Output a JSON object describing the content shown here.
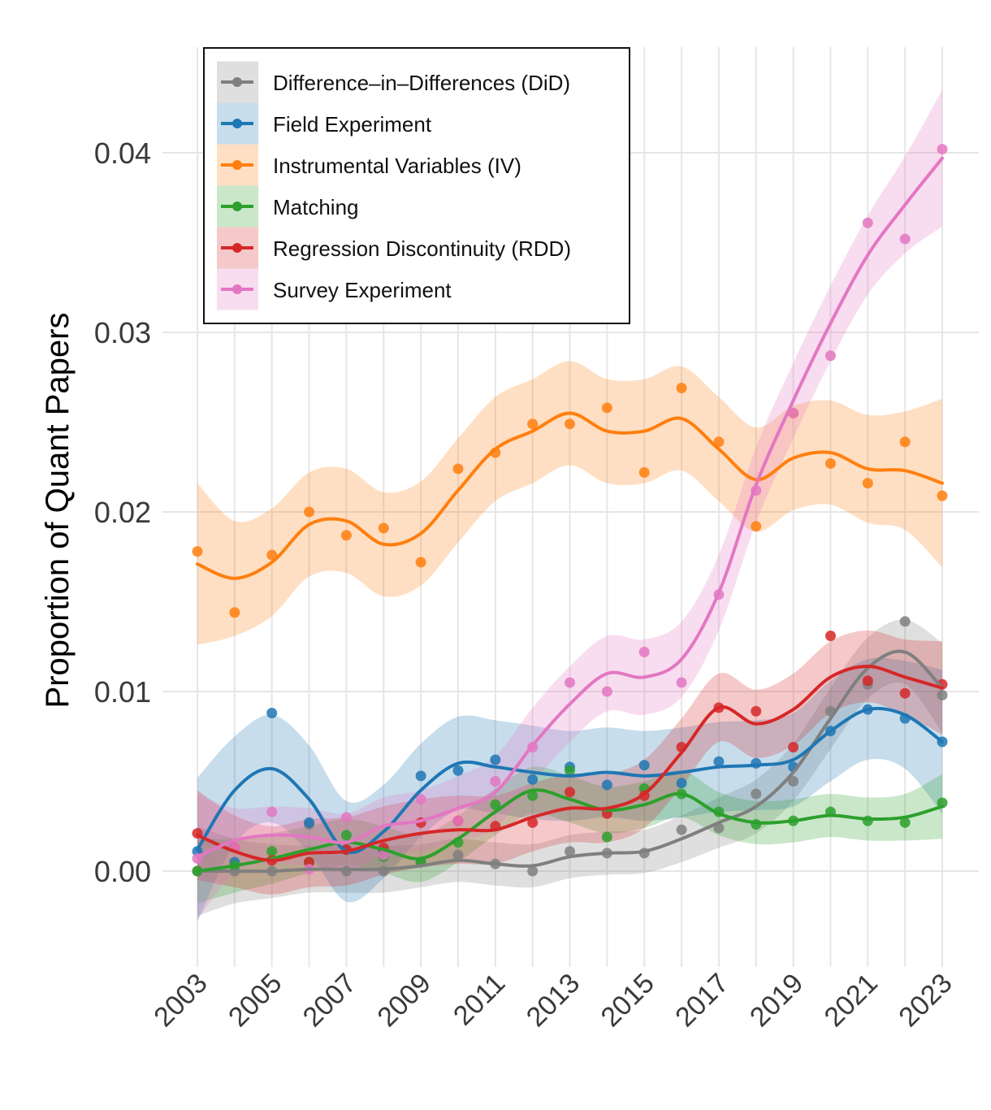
{
  "chart_data": {
    "type": "line",
    "title": "",
    "xlabel": "",
    "ylabel": "Proportion of Quant Papers",
    "xlim": [
      2003,
      2023
    ],
    "ylim": [
      -0.0055,
      0.046
    ],
    "x_ticks": [
      2003,
      2005,
      2007,
      2009,
      2011,
      2013,
      2015,
      2017,
      2019,
      2021,
      2023
    ],
    "x_tick_labels": [
      "2003",
      "2005",
      "2007",
      "2009",
      "2011",
      "2013",
      "2015",
      "2017",
      "2019",
      "2021",
      "2023"
    ],
    "y_ticks": [
      0.0,
      0.01,
      0.02,
      0.03,
      0.04
    ],
    "y_tick_labels": [
      "0.00",
      "0.01",
      "0.02",
      "0.03",
      "0.04"
    ],
    "grid": true,
    "legend_position": "top-left",
    "x": [
      2003,
      2004,
      2005,
      2006,
      2007,
      2008,
      2009,
      2010,
      2011,
      2012,
      2013,
      2014,
      2015,
      2016,
      2017,
      2018,
      2019,
      2020,
      2021,
      2022,
      2023
    ],
    "series": [
      {
        "name": "Difference–in–Differences (DiD)",
        "color": "#7f7f7f",
        "values": [
          0.0,
          0.0,
          0.0,
          0.0026,
          0.0,
          0.0,
          0.0005,
          0.0009,
          0.0004,
          0.0,
          0.0011,
          0.001,
          0.001,
          0.0023,
          0.0024,
          0.0043,
          0.005,
          0.0089,
          0.0104,
          0.0139,
          0.0098
        ],
        "smooth": [
          0.0,
          0.0,
          0.0,
          0.0001,
          0.0001,
          0.0001,
          0.0003,
          0.0006,
          0.0004,
          0.0003,
          0.0008,
          0.001,
          0.0011,
          0.0018,
          0.0027,
          0.0036,
          0.0055,
          0.0085,
          0.0113,
          0.0122,
          0.0102
        ],
        "band": [
          0.0025,
          0.0018,
          0.0015,
          0.0013,
          0.0013,
          0.0013,
          0.0012,
          0.0012,
          0.0012,
          0.0012,
          0.0012,
          0.0012,
          0.0012,
          0.0013,
          0.0014,
          0.0015,
          0.0016,
          0.0017,
          0.0017,
          0.0018,
          0.0025
        ]
      },
      {
        "name": "Field Experiment",
        "color": "#1f77b4",
        "values": [
          0.0011,
          0.0005,
          0.0088,
          0.0027,
          0.0012,
          0.0011,
          0.0053,
          0.0056,
          0.0062,
          0.0051,
          0.0058,
          0.0048,
          0.0059,
          0.0049,
          0.0061,
          0.006,
          0.0058,
          0.0078,
          0.009,
          0.0085,
          0.0072
        ],
        "smooth": [
          0.0012,
          0.0045,
          0.0057,
          0.004,
          0.0011,
          0.0022,
          0.0045,
          0.006,
          0.0058,
          0.0055,
          0.0053,
          0.0055,
          0.0053,
          0.0055,
          0.0058,
          0.0059,
          0.0062,
          0.0078,
          0.009,
          0.0087,
          0.0072
        ],
        "band": [
          0.004,
          0.003,
          0.003,
          0.003,
          0.0028,
          0.0026,
          0.0026,
          0.0026,
          0.0026,
          0.0026,
          0.0025,
          0.0025,
          0.0025,
          0.0025,
          0.0025,
          0.0025,
          0.0026,
          0.0028,
          0.0028,
          0.003,
          0.004
        ]
      },
      {
        "name": "Instrumental Variables (IV)",
        "color": "#ff7f0e",
        "values": [
          0.0178,
          0.0144,
          0.0176,
          0.02,
          0.0187,
          0.0191,
          0.0172,
          0.0224,
          0.0233,
          0.0249,
          0.0249,
          0.0258,
          0.0222,
          0.0269,
          0.0239,
          0.0192,
          0.0255,
          0.0227,
          0.0216,
          0.0239,
          0.0209
        ],
        "smooth": [
          0.0171,
          0.0163,
          0.0172,
          0.0193,
          0.0195,
          0.0182,
          0.0188,
          0.0212,
          0.0235,
          0.0245,
          0.0255,
          0.0245,
          0.0245,
          0.0252,
          0.0235,
          0.0218,
          0.023,
          0.0233,
          0.0224,
          0.0223,
          0.0216
        ],
        "band": [
          0.0045,
          0.0032,
          0.003,
          0.0029,
          0.0029,
          0.0029,
          0.0029,
          0.0029,
          0.0029,
          0.0029,
          0.0029,
          0.0029,
          0.0029,
          0.0029,
          0.0029,
          0.0029,
          0.0029,
          0.0029,
          0.003,
          0.0033,
          0.0047
        ]
      },
      {
        "name": "Matching",
        "color": "#2ca02c",
        "values": [
          0.0,
          0.0003,
          0.0011,
          0.0005,
          0.002,
          0.0008,
          0.0005,
          0.0016,
          0.0037,
          0.0042,
          0.0056,
          0.0019,
          0.0046,
          0.0043,
          0.0033,
          0.0026,
          0.0028,
          0.0033,
          0.0028,
          0.0027,
          0.0038
        ],
        "smooth": [
          0.0,
          0.0003,
          0.0007,
          0.0012,
          0.0016,
          0.0012,
          0.0007,
          0.0018,
          0.0033,
          0.0045,
          0.004,
          0.0034,
          0.0037,
          0.0043,
          0.0032,
          0.0027,
          0.0028,
          0.0031,
          0.0029,
          0.003,
          0.0036
        ],
        "band": [
          0.0018,
          0.0015,
          0.0014,
          0.0013,
          0.0013,
          0.0013,
          0.0013,
          0.0013,
          0.0013,
          0.0013,
          0.0013,
          0.0013,
          0.0013,
          0.0013,
          0.0012,
          0.0012,
          0.0012,
          0.0012,
          0.0012,
          0.0013,
          0.0018
        ]
      },
      {
        "name": "Regression Discontinuity (RDD)",
        "color": "#d62728",
        "values": [
          0.0021,
          0.0013,
          0.0006,
          0.0005,
          0.0012,
          0.0013,
          0.0027,
          0.0028,
          0.0025,
          0.0027,
          0.0044,
          0.0032,
          0.0042,
          0.0069,
          0.0091,
          0.0089,
          0.0069,
          0.0131,
          0.0106,
          0.0099,
          0.0104
        ],
        "smooth": [
          0.002,
          0.0011,
          0.0006,
          0.001,
          0.0011,
          0.0017,
          0.0021,
          0.0023,
          0.0023,
          0.003,
          0.0035,
          0.0035,
          0.0043,
          0.0066,
          0.0091,
          0.0082,
          0.009,
          0.0108,
          0.0114,
          0.0108,
          0.0102
        ],
        "band": [
          0.0025,
          0.002,
          0.0019,
          0.0019,
          0.0019,
          0.0019,
          0.0019,
          0.0019,
          0.0019,
          0.0019,
          0.0019,
          0.0019,
          0.0019,
          0.0019,
          0.0019,
          0.0019,
          0.002,
          0.002,
          0.002,
          0.0021,
          0.0026
        ]
      },
      {
        "name": "Survey Experiment",
        "color": "#e377c2",
        "values": [
          0.0007,
          0.0013,
          0.0033,
          0.0001,
          0.003,
          0.0009,
          0.004,
          0.0028,
          0.005,
          0.0069,
          0.0105,
          0.01,
          0.0122,
          0.0105,
          0.0154,
          0.0212,
          0.0255,
          0.0287,
          0.0361,
          0.0352,
          0.0402
        ],
        "smooth": [
          0.0008,
          0.0017,
          0.002,
          0.0019,
          0.0016,
          0.0025,
          0.0028,
          0.0035,
          0.0044,
          0.007,
          0.0093,
          0.011,
          0.0108,
          0.0118,
          0.0155,
          0.0215,
          0.0262,
          0.0305,
          0.0343,
          0.0371,
          0.0397
        ],
        "band": [
          0.0035,
          0.0018,
          0.0016,
          0.0016,
          0.0016,
          0.0016,
          0.0017,
          0.0018,
          0.002,
          0.0021,
          0.0021,
          0.0021,
          0.0021,
          0.0021,
          0.0021,
          0.0021,
          0.0021,
          0.0021,
          0.0022,
          0.0027,
          0.0038
        ]
      }
    ]
  }
}
